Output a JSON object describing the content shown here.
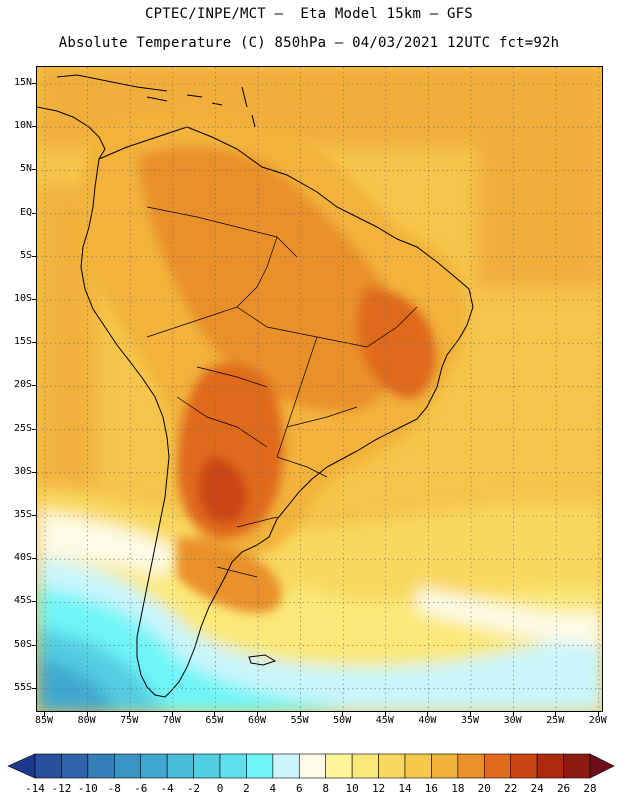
{
  "header": {
    "title_line1": "CPTEC/INPE/MCT –  Eta Model 15km – GFS",
    "title_line2": "Absolute Temperature (C) 850hPa – 04/03/2021 12UTC fct=92h"
  },
  "map": {
    "lat_labels": [
      "15N",
      "10N",
      "5N",
      "EQ",
      "5S",
      "10S",
      "15S",
      "20S",
      "25S",
      "30S",
      "35S",
      "40S",
      "45S",
      "50S",
      "55S"
    ],
    "lon_labels": [
      "85W",
      "80W",
      "75W",
      "70W",
      "65W",
      "60W",
      "55W",
      "50W",
      "45W",
      "40W",
      "35W",
      "30W",
      "25W",
      "20W"
    ]
  },
  "colorbar": {
    "labels": [
      "-14",
      "-12",
      "-10",
      "-8",
      "-6",
      "-4",
      "-2",
      "0",
      "2",
      "4",
      "6",
      "8",
      "10",
      "12",
      "14",
      "16",
      "18",
      "20",
      "22",
      "24",
      "26",
      "28"
    ],
    "under_color": "#1c3a8c",
    "over_color": "#6e0c1e",
    "colors": [
      "#2a4f9c",
      "#2f64aa",
      "#3480b9",
      "#3a94c4",
      "#40a8cf",
      "#47bbd8",
      "#52cde2",
      "#5fe0ec",
      "#6ff5f7",
      "#c9f5fb",
      "#fdfae6",
      "#fff59a",
      "#fbe878",
      "#f8d85e",
      "#f6c74a",
      "#f2b23a",
      "#e9902a",
      "#e06b1c",
      "#cb4414",
      "#ae2a0f",
      "#8c1c12"
    ]
  }
}
